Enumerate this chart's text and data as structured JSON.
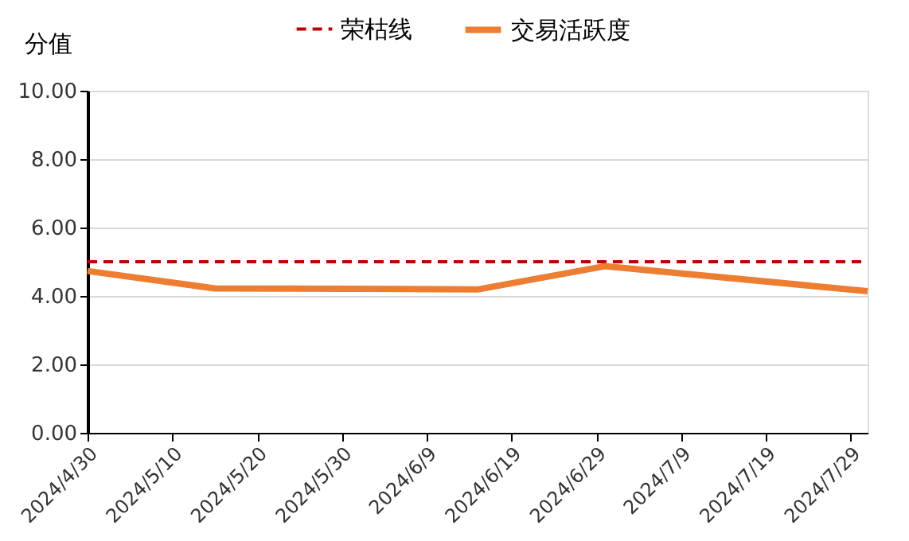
{
  "chart_data": {
    "type": "line",
    "ylabel": "分值",
    "x": [
      "2024-04-30",
      "2024-05-15",
      "2024-05-31",
      "2024-06-15",
      "2024-06-30",
      "2024-07-31"
    ],
    "series": [
      {
        "name": "交易活跃度",
        "color": "#ed7d31",
        "values": [
          4.73,
          4.22,
          4.21,
          4.19,
          4.87,
          4.14
        ]
      }
    ],
    "ref_lines": [
      {
        "axis": "y",
        "value": 5,
        "label": "荣枯线",
        "color": "#c00000",
        "line_style": "dashed"
      }
    ],
    "xlim": [
      "2024-04-30",
      "2024-07-31"
    ],
    "xticks": [
      {
        "value": "2024-04-30",
        "label": "2024/4/30"
      },
      {
        "value": "2024-05-10",
        "label": "2024/5/10"
      },
      {
        "value": "2024-05-20",
        "label": "2024/5/20"
      },
      {
        "value": "2024-05-30",
        "label": "2024/5/30"
      },
      {
        "value": "2024-06-09",
        "label": "2024/6/9"
      },
      {
        "value": "2024-06-19",
        "label": "2024/6/19"
      },
      {
        "value": "2024-06-29",
        "label": "2024/6/29"
      },
      {
        "value": "2024-07-09",
        "label": "2024/7/9"
      },
      {
        "value": "2024-07-19",
        "label": "2024/7/19"
      },
      {
        "value": "2024-07-29",
        "label": "2024/7/29"
      }
    ],
    "ylim": [
      0,
      10
    ],
    "yticks": [
      {
        "value": 0,
        "label": "0.00"
      },
      {
        "value": 2,
        "label": "2.00"
      },
      {
        "value": 4,
        "label": "4.00"
      },
      {
        "value": 6,
        "label": "6.00"
      },
      {
        "value": 8,
        "label": "8.00"
      },
      {
        "value": 10,
        "label": "10.00"
      }
    ],
    "grid": "y",
    "legend": "top",
    "marker": "none",
    "line_style": "solid"
  }
}
